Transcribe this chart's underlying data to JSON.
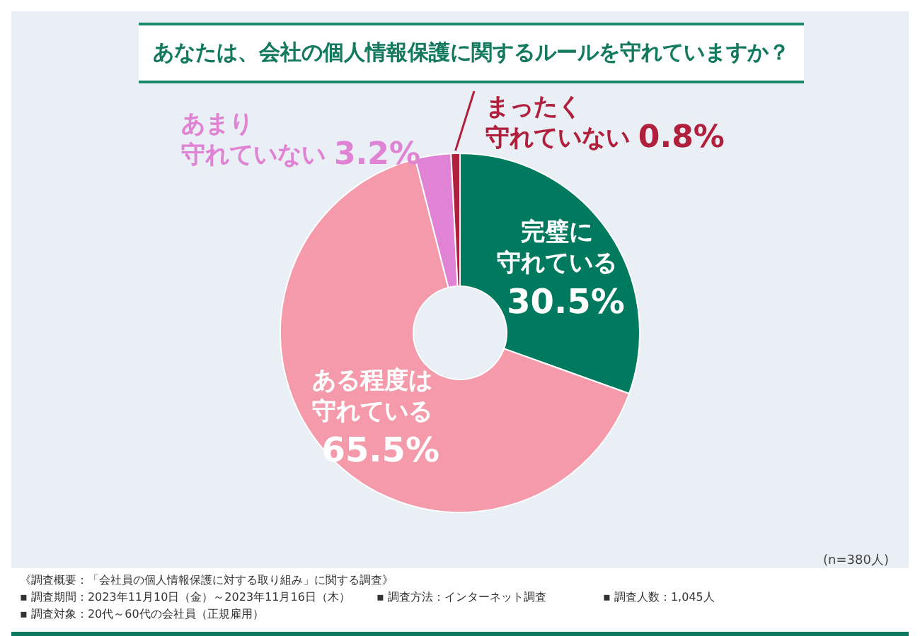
{
  "chart_data": {
    "type": "donut",
    "title": "あなたは、会社の個人情報保護に関するルールを守れていますか？",
    "categories": [
      "完璧に守れている",
      "ある程度は守れている",
      "あまり守れていない",
      "まったく守れていない"
    ],
    "value_labels": [
      "30.5%",
      "65.5%",
      "3.2%",
      "0.8%"
    ],
    "values": [
      30.5,
      65.5,
      3.2,
      0.8
    ],
    "colors": [
      "#007a5e",
      "#f59aaa",
      "#e083d4",
      "#b0203c"
    ],
    "data_labels": true,
    "legend": false,
    "annotations": [
      "(n=380人)",
      "《調査概要：「会社員の個人情報保護に対する取り組み」に関する調査》",
      "▪ 調査期間：2023年11月10日（金）～2023年11月16日（木）",
      "▪ 調査方法：インターネット調査",
      "▪ 調査人数：1,045人",
      "▪ 調査対象：20代～60代の会社員（正規雇用）"
    ]
  }
}
